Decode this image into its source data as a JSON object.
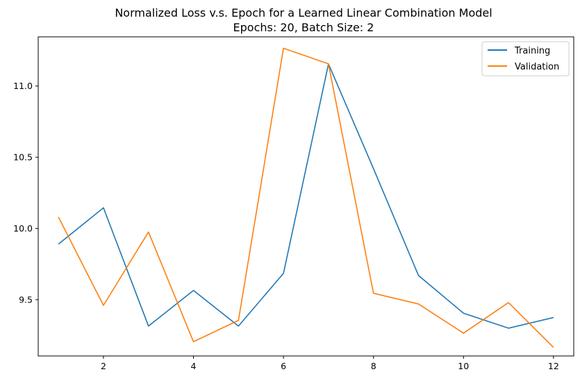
{
  "chart_data": {
    "type": "line",
    "title": "Normalized Loss v.s. Epoch for a Learned Linear Combination Model",
    "subtitle": "Epochs: 20, Batch Size: 2",
    "xlabel": "",
    "ylabel": "",
    "x": [
      1,
      2,
      3,
      4,
      5,
      6,
      7,
      8,
      9,
      10,
      11,
      12
    ],
    "xlim": [
      0.55,
      12.45
    ],
    "ylim": [
      9.105,
      11.345
    ],
    "x_ticks": [
      "2",
      "4",
      "6",
      "8",
      "10",
      "12"
    ],
    "y_ticks": [
      "9.5",
      "10.0",
      "10.5",
      "11.0"
    ],
    "grid": false,
    "legend_position": "top-right",
    "series": [
      {
        "name": "Training",
        "color": "#1f77b4",
        "values": [
          9.89,
          10.145,
          9.315,
          9.565,
          9.315,
          9.685,
          11.155,
          10.42,
          9.67,
          9.405,
          9.3,
          9.375
        ]
      },
      {
        "name": "Validation",
        "color": "#ff7f0e",
        "values": [
          10.08,
          9.46,
          9.975,
          9.205,
          9.355,
          11.265,
          11.155,
          9.545,
          9.47,
          9.265,
          9.48,
          9.165
        ]
      }
    ]
  }
}
